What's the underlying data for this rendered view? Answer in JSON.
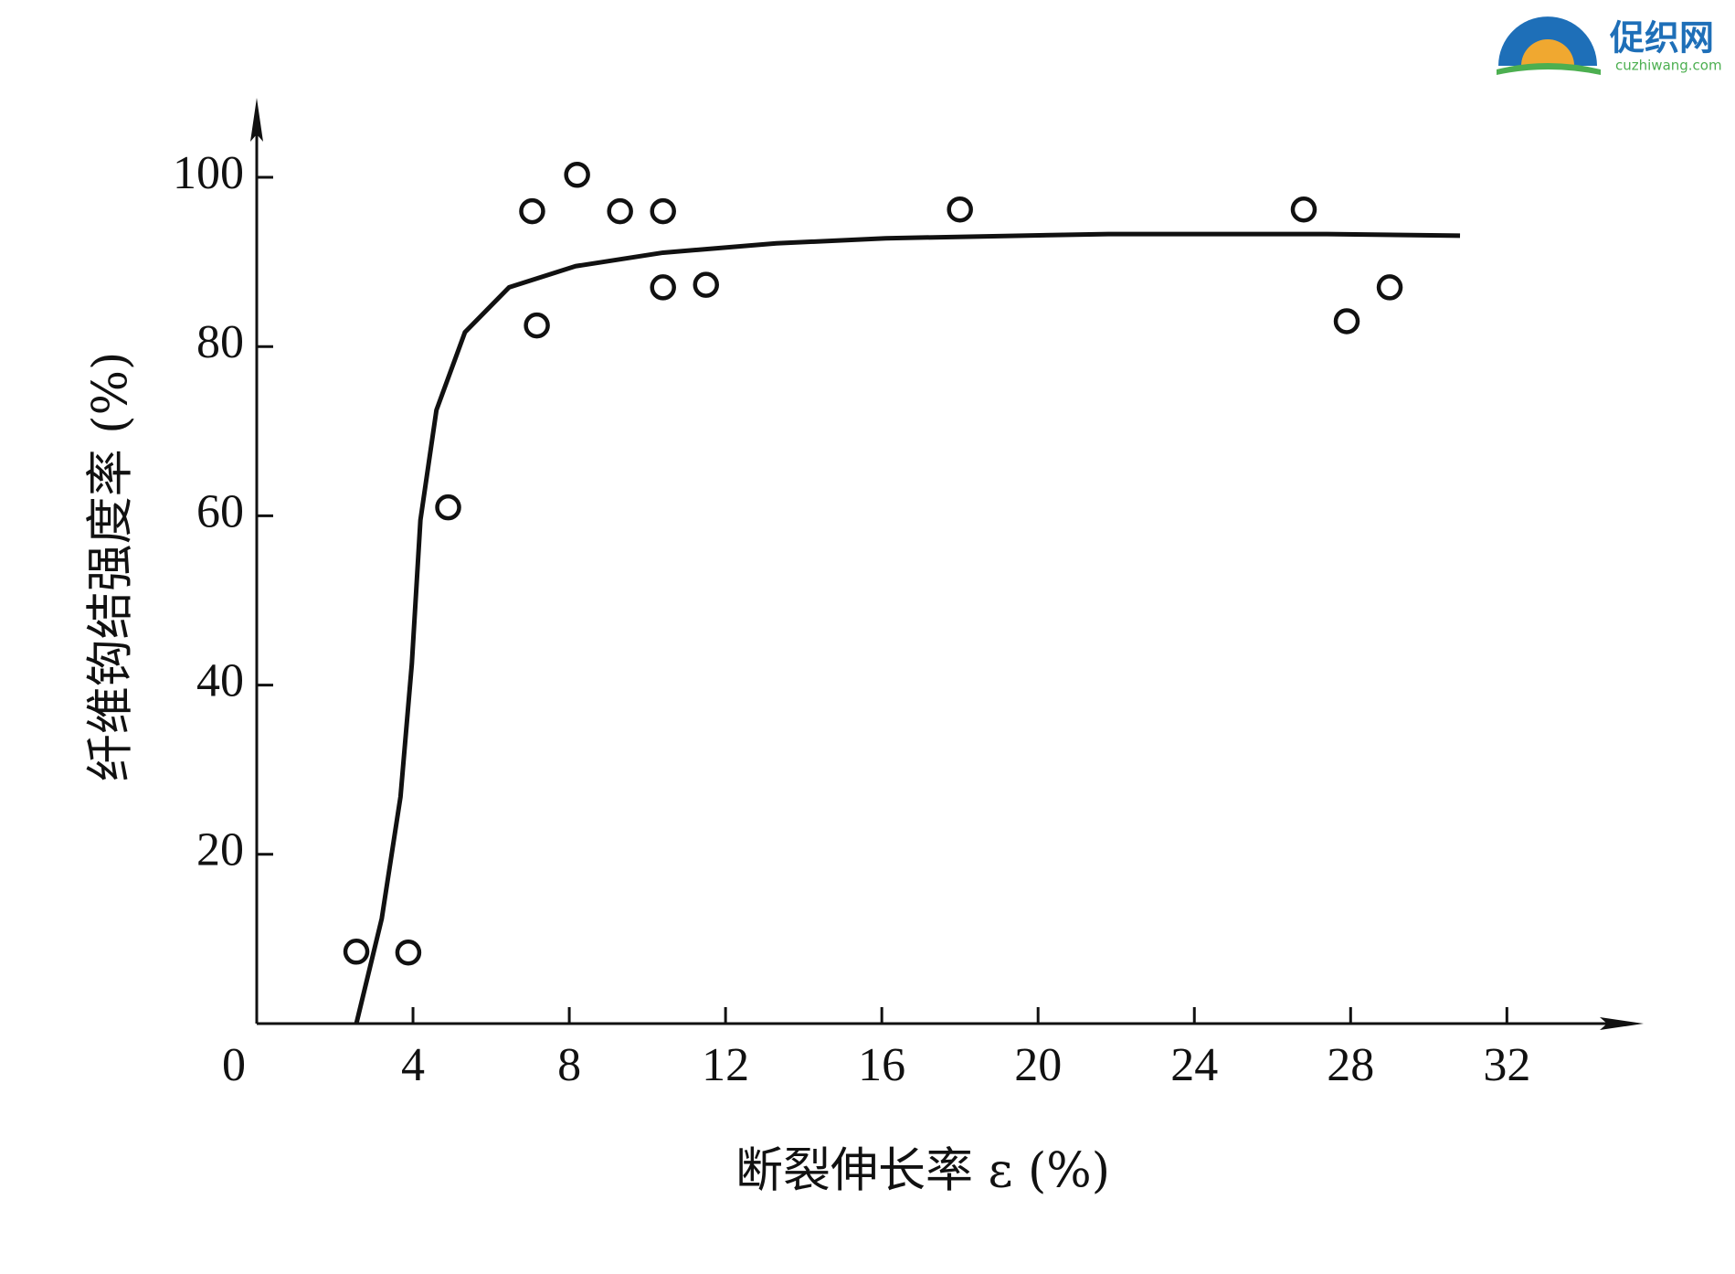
{
  "chart_data": {
    "type": "scatter",
    "xlabel": "断裂伸长率 ε (%)",
    "ylabel": "纤维钩结强度率 (%)",
    "xlim": [
      0,
      35.5
    ],
    "ylim": [
      0,
      109.4
    ],
    "xticks": [
      0,
      4,
      8,
      12,
      16,
      20,
      24,
      28,
      32
    ],
    "yticks": [
      20,
      40,
      60,
      80,
      100
    ],
    "series": [
      {
        "type": "scatter",
        "color": "#111111",
        "x": [
          2.55,
          3.88,
          4.9,
          7.05,
          7.17,
          8.2,
          9.3,
          10.4,
          10.4,
          11.5,
          18.0,
          26.8,
          27.9,
          29.0
        ],
        "values": [
          8.5,
          8.4,
          61,
          96,
          82.5,
          100.3,
          96,
          96,
          87,
          87.3,
          96.2,
          96.2,
          83,
          87
        ]
      },
      {
        "type": "line",
        "color": "#111111",
        "x": [
          2.55,
          3.2,
          3.68,
          3.97,
          4.19,
          4.6,
          5.33,
          6.46,
          8.16,
          10.4,
          13.3,
          16.1,
          21.8,
          27.4,
          30.8
        ],
        "values": [
          0,
          12.4,
          26.8,
          42.5,
          59.5,
          72.5,
          81.7,
          87,
          89.5,
          91.1,
          92.2,
          92.8,
          93.3,
          93.3,
          93.1
        ]
      }
    ]
  },
  "watermark": {
    "name": "促织网",
    "url": "cuzhiwang.com"
  }
}
